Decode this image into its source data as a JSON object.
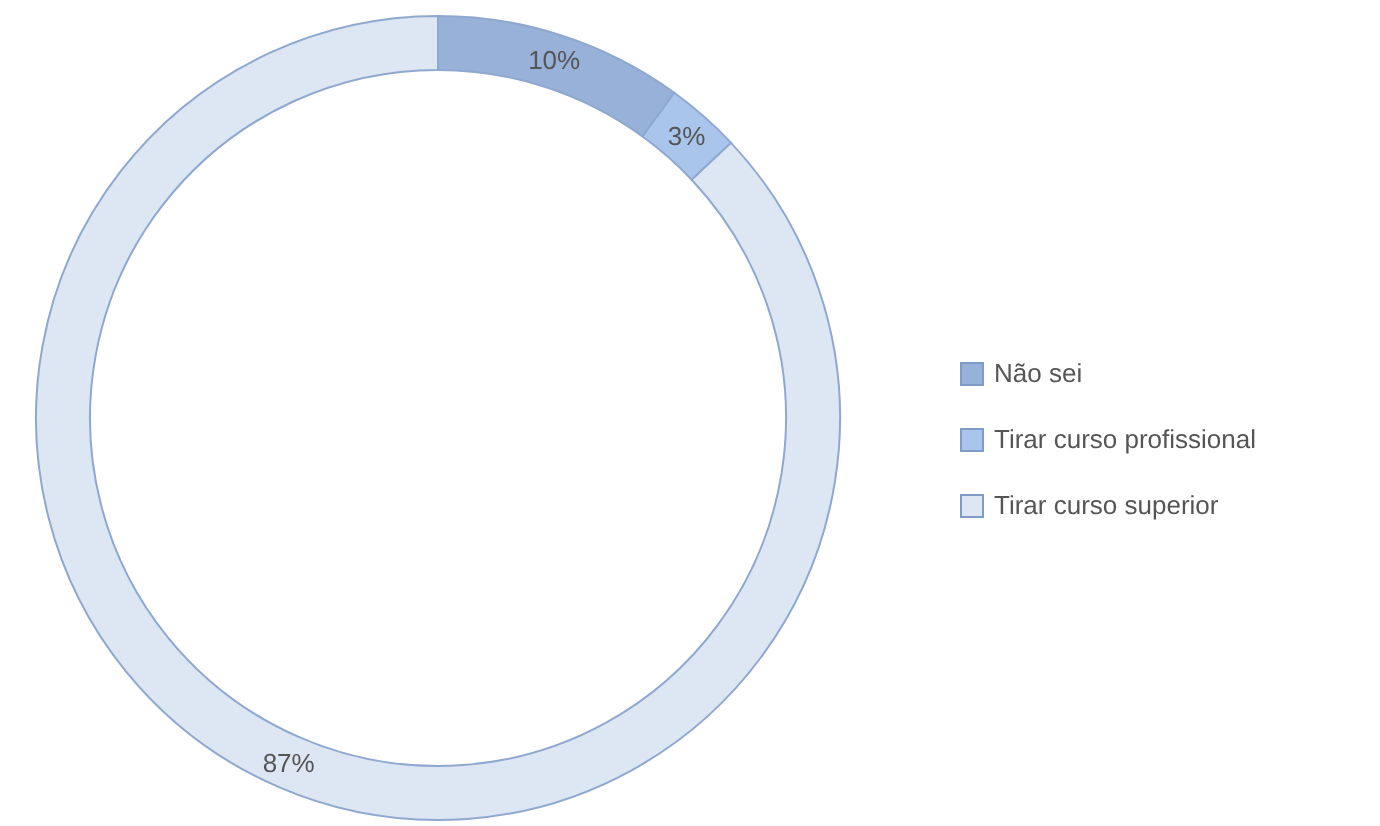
{
  "chart_data": {
    "type": "donut",
    "categories": [
      "Não sei",
      "Tirar curso profissional",
      "Tirar curso superior"
    ],
    "values": [
      10,
      3,
      87
    ],
    "colors": [
      "#98b1d8",
      "#a9c5ec",
      "#dde6f3"
    ],
    "value_labels": [
      "10%",
      "3%",
      "87%"
    ],
    "legend": "right"
  }
}
